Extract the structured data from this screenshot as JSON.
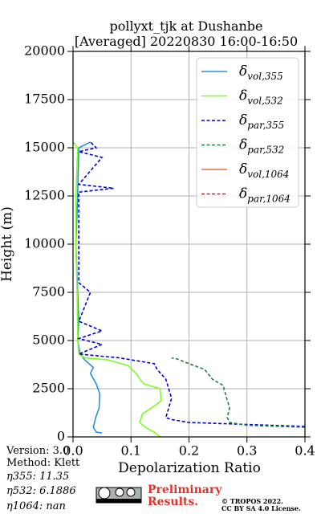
{
  "chart_data": {
    "type": "line",
    "title": "pollyxt_tjk at Dushanbe",
    "subtitle": "[Averaged] 20220830 16:00-16:50",
    "x_label": "Depolarization Ratio",
    "y_label": "Height (m)",
    "xlim": [
      0,
      0.4
    ],
    "ylim": [
      0,
      20000
    ],
    "xticks": [
      {
        "value": 0,
        "label": "0.0"
      },
      0.1,
      0.2,
      0.3,
      0.4
    ],
    "yticks": [
      0,
      2500,
      5000,
      7500,
      10000,
      12500,
      15000,
      17500,
      20000
    ],
    "grid": true,
    "legend": "upper right",
    "series": [
      {
        "name": "δvol,355",
        "color": "#2b8fdc",
        "linestyle": "solid",
        "x": [
          0.05,
          0.04,
          0.035,
          0.039,
          0.045,
          0.046,
          0.04,
          0.03,
          0.035,
          0.02,
          0.012,
          0.008,
          0.01,
          0.008,
          0.005,
          0.008,
          0.01,
          0.03
        ],
        "y": [
          200,
          250,
          500,
          1000,
          1500,
          2250,
          2750,
          3300,
          3600,
          4000,
          4330,
          5000,
          6000,
          7500,
          10000,
          12500,
          15000,
          15300
        ]
      },
      {
        "name": "δvol,532",
        "color": "#7dff1e",
        "linestyle": "solid",
        "x": [
          0.15,
          0.14,
          0.125,
          0.115,
          0.12,
          0.13,
          0.14,
          0.152,
          0.15,
          0.123,
          0.115,
          0.11,
          0.095,
          0.06,
          0.02,
          0.01,
          0.008,
          0.007,
          0.005,
          0.005,
          0.008,
          0.0
        ],
        "y": [
          0,
          250,
          500,
          750,
          1200,
          1400,
          1600,
          1870,
          2500,
          2750,
          3000,
          3250,
          3700,
          4000,
          4100,
          4300,
          5000,
          7500,
          10000,
          12500,
          15000,
          15300
        ]
      },
      {
        "name": "δpar,355",
        "color": "#0000dd",
        "linestyle": "dashed",
        "x": [
          0.4,
          0.2,
          0.17,
          0.16,
          0.165,
          0.17,
          0.165,
          0.16,
          0.145,
          0.14,
          0.1,
          0.08,
          0.01,
          0.05,
          0.01,
          0.05,
          0.01,
          0.03,
          0.01,
          0.01,
          0.07,
          0.01,
          0.05,
          0.01,
          0.04,
          0.03
        ],
        "y": [
          540,
          750,
          900,
          1000,
          1500,
          2000,
          2500,
          3000,
          3500,
          3800,
          4000,
          4100,
          4300,
          4800,
          5100,
          5500,
          6000,
          7500,
          8000,
          12700,
          12900,
          13100,
          14500,
          14800,
          15000,
          15300
        ]
      },
      {
        "name": "δpar,532",
        "color": "#1e8040",
        "linestyle": "dashed",
        "x": [
          0.4,
          0.3,
          0.27,
          0.266,
          0.27,
          0.265,
          0.259,
          0.24,
          0.227,
          0.2,
          0.18,
          0.17
        ],
        "y": [
          500,
          600,
          750,
          1000,
          1500,
          2000,
          2670,
          3000,
          3500,
          3800,
          4040,
          4100
        ]
      },
      {
        "name": "δvol,1064",
        "color": "#f46d43",
        "linestyle": "solid",
        "x": [],
        "y": []
      },
      {
        "name": "δpar,1064",
        "color": "#d7191c",
        "linestyle": "dashed",
        "x": [],
        "y": []
      }
    ]
  },
  "info": {
    "version": "Version: 3.0",
    "method": "Method: Klett",
    "eta355": "η355:  11.35",
    "eta532": "η532: 6.1886",
    "eta1064": "η1064:    nan"
  },
  "footer": {
    "preliminary": "Preliminary",
    "results": "Results.",
    "copyright": "© TROPOS 2022.",
    "license": "CC BY SA 4.0 License."
  }
}
